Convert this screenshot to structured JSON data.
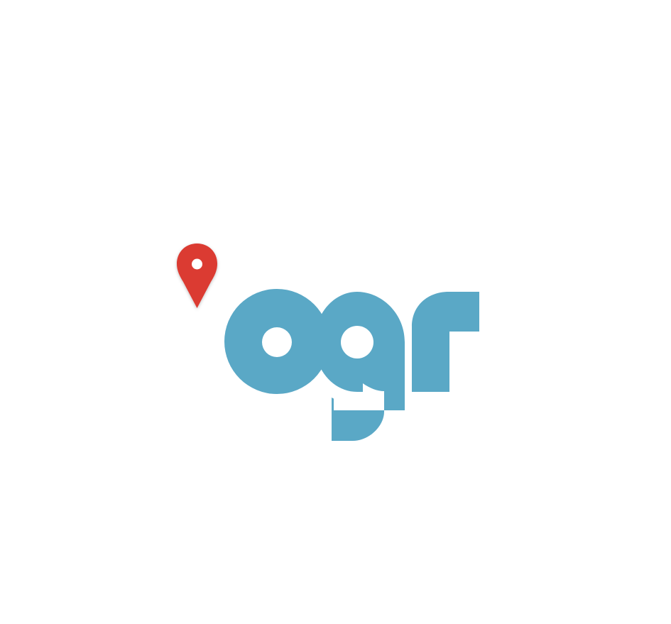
{
  "logo": {
    "wordmark": "ogr",
    "pin_icon": "map-pin-icon",
    "colors": {
      "wordmark": "#5aa8c6",
      "pin": "#db3b33",
      "pin_hole": "#ffffff",
      "background": "#ffffff"
    }
  }
}
